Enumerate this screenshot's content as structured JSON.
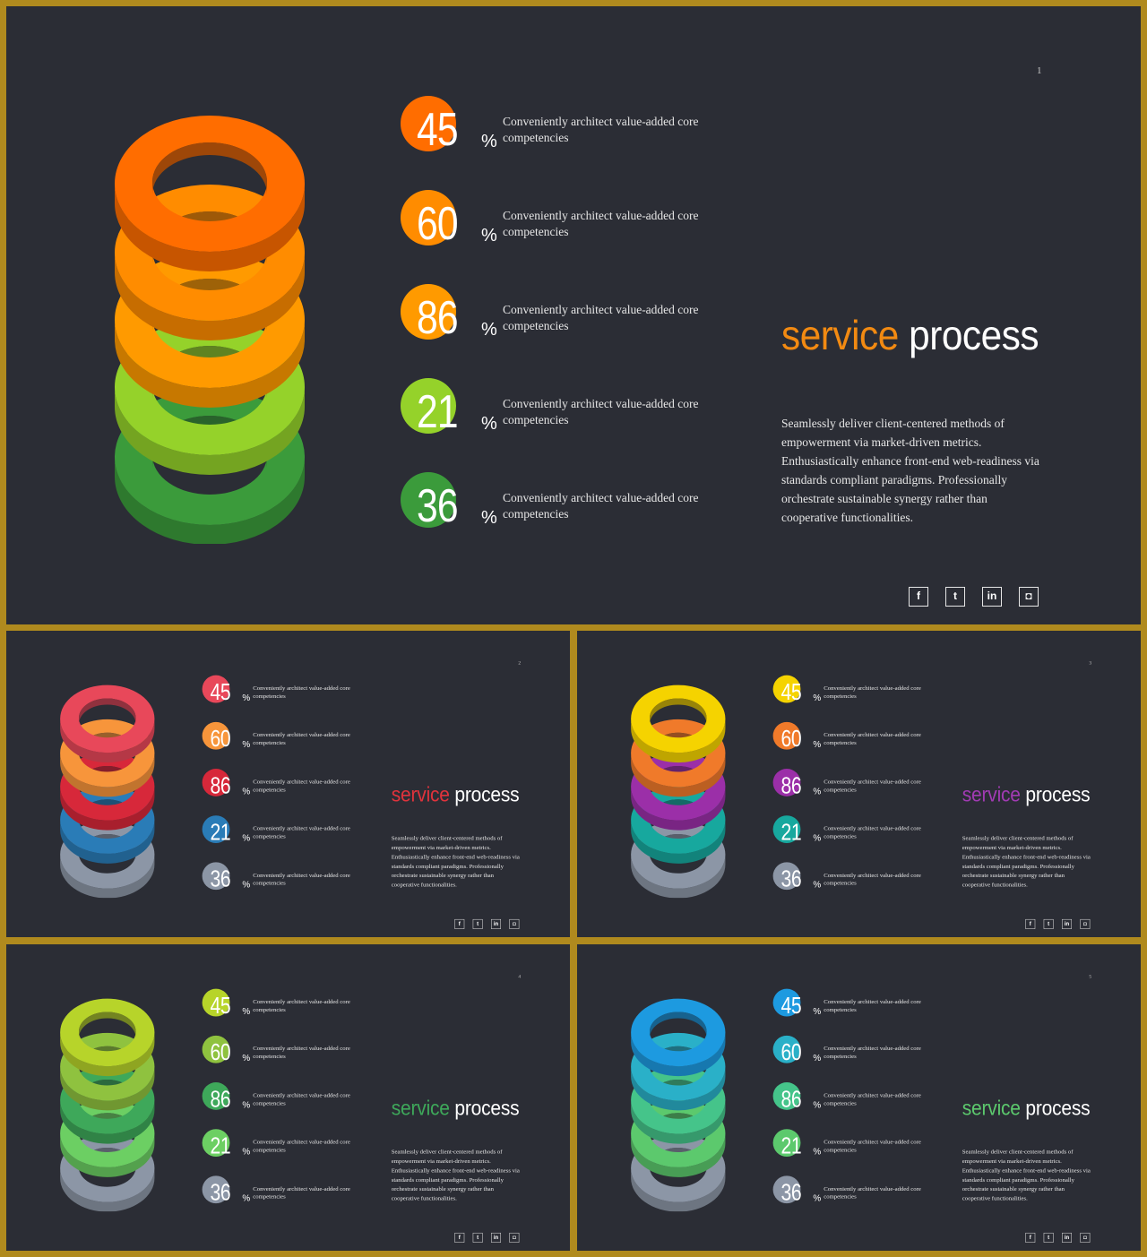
{
  "slides": [
    {
      "page": "1",
      "title_accent": "service",
      "title_rest": "process",
      "accent_color": "#f28a12",
      "ring_colors": [
        "#ff6d00",
        "#ff8c00",
        "#ff9a00",
        "#95d22a",
        "#3b9b3b"
      ],
      "stats": [
        {
          "value": "45",
          "unit": "%",
          "desc": "Conveniently architect value-added core competencies",
          "color": "#ff6d00"
        },
        {
          "value": "60",
          "unit": "%",
          "desc": "Conveniently architect value-added core competencies",
          "color": "#ff8c00"
        },
        {
          "value": "86",
          "unit": "%",
          "desc": "Conveniently architect value-added core competencies",
          "color": "#ff9a00"
        },
        {
          "value": "21",
          "unit": "%",
          "desc": "Conveniently architect value-added core competencies",
          "color": "#95d22a"
        },
        {
          "value": "36",
          "unit": "%",
          "desc": "Conveniently architect value-added core competencies",
          "color": "#3b9b3b"
        }
      ],
      "body": "Seamlessly deliver client-centered methods of empowerment via market-driven metrics. Enthusiastically enhance front-end web-readiness via standards compliant paradigms. Professionally orchestrate sustainable synergy rather than cooperative functionalities.",
      "social": [
        {
          "icon": "facebook-icon",
          "glyph": "f"
        },
        {
          "icon": "twitter-icon",
          "glyph": "t"
        },
        {
          "icon": "linkedin-icon",
          "glyph": "in"
        },
        {
          "icon": "instagram-icon",
          "glyph": "◘"
        }
      ]
    },
    {
      "page": "2",
      "title_accent": "service",
      "title_rest": "process",
      "accent_color": "#e0333c",
      "ring_colors": [
        "#e8485a",
        "#f7953b",
        "#d7283a",
        "#2a7cb7",
        "#8c96a6"
      ],
      "stats": [
        {
          "value": "45",
          "unit": "%",
          "desc": "Conveniently architect value-added core competencies",
          "color": "#e8485a"
        },
        {
          "value": "60",
          "unit": "%",
          "desc": "Conveniently architect value-added core competencies",
          "color": "#f7953b"
        },
        {
          "value": "86",
          "unit": "%",
          "desc": "Conveniently architect value-added core competencies",
          "color": "#d7283a"
        },
        {
          "value": "21",
          "unit": "%",
          "desc": "Conveniently architect value-added core competencies",
          "color": "#2a7cb7"
        },
        {
          "value": "36",
          "unit": "%",
          "desc": "Conveniently architect value-added core competencies",
          "color": "#8c96a6"
        }
      ],
      "body": "Seamlessly deliver client-centered methods of empowerment via market-driven metrics. Enthusiastically enhance front-end web-readiness via standards compliant paradigms. Professionally orchestrate sustainable synergy rather than cooperative functionalities.",
      "social": [
        {
          "icon": "facebook-icon",
          "glyph": "f"
        },
        {
          "icon": "twitter-icon",
          "glyph": "t"
        },
        {
          "icon": "linkedin-icon",
          "glyph": "in"
        },
        {
          "icon": "instagram-icon",
          "glyph": "◘"
        }
      ]
    },
    {
      "page": "3",
      "title_accent": "service",
      "title_rest": "process",
      "accent_color": "#a13bb3",
      "ring_colors": [
        "#f5d300",
        "#f07a2a",
        "#9b2fa8",
        "#17a89e",
        "#8c96a6"
      ],
      "stats": [
        {
          "value": "45",
          "unit": "%",
          "desc": "Conveniently architect value-added core competencies",
          "color": "#f5d300"
        },
        {
          "value": "60",
          "unit": "%",
          "desc": "Conveniently architect value-added core competencies",
          "color": "#f07a2a"
        },
        {
          "value": "86",
          "unit": "%",
          "desc": "Conveniently architect value-added core competencies",
          "color": "#9b2fa8"
        },
        {
          "value": "21",
          "unit": "%",
          "desc": "Conveniently architect value-added core competencies",
          "color": "#17a89e"
        },
        {
          "value": "36",
          "unit": "%",
          "desc": "Conveniently architect value-added core competencies",
          "color": "#8c96a6"
        }
      ],
      "body": "Seamlessly deliver client-centered methods of empowerment via market-driven metrics. Enthusiastically enhance front-end web-readiness via standards compliant paradigms. Professionally orchestrate sustainable synergy rather than cooperative functionalities.",
      "social": [
        {
          "icon": "facebook-icon",
          "glyph": "f"
        },
        {
          "icon": "twitter-icon",
          "glyph": "t"
        },
        {
          "icon": "linkedin-icon",
          "glyph": "in"
        },
        {
          "icon": "instagram-icon",
          "glyph": "◘"
        }
      ]
    },
    {
      "page": "4",
      "title_accent": "service",
      "title_rest": "process",
      "accent_color": "#3ea85a",
      "ring_colors": [
        "#b7d42a",
        "#8fc23f",
        "#3ea85a",
        "#6ccf63",
        "#8c96a6"
      ],
      "stats": [
        {
          "value": "45",
          "unit": "%",
          "desc": "Conveniently architect value-added core competencies",
          "color": "#b7d42a"
        },
        {
          "value": "60",
          "unit": "%",
          "desc": "Conveniently architect value-added core competencies",
          "color": "#8fc23f"
        },
        {
          "value": "86",
          "unit": "%",
          "desc": "Conveniently architect value-added core competencies",
          "color": "#3ea85a"
        },
        {
          "value": "21",
          "unit": "%",
          "desc": "Conveniently architect value-added core competencies",
          "color": "#6ccf63"
        },
        {
          "value": "36",
          "unit": "%",
          "desc": "Conveniently architect value-added core competencies",
          "color": "#8c96a6"
        }
      ],
      "body": "Seamlessly deliver client-centered methods of empowerment via market-driven metrics. Enthusiastically enhance front-end web-readiness via standards compliant paradigms. Professionally orchestrate sustainable synergy rather than cooperative functionalities.",
      "social": [
        {
          "icon": "facebook-icon",
          "glyph": "f"
        },
        {
          "icon": "twitter-icon",
          "glyph": "t"
        },
        {
          "icon": "linkedin-icon",
          "glyph": "in"
        },
        {
          "icon": "instagram-icon",
          "glyph": "◘"
        }
      ]
    },
    {
      "page": "5",
      "title_accent": "service",
      "title_rest": "process",
      "accent_color": "#5cc96d",
      "ring_colors": [
        "#1d9ae0",
        "#2ab0c8",
        "#45c48a",
        "#5cc96d",
        "#8c96a6"
      ],
      "stats": [
        {
          "value": "45",
          "unit": "%",
          "desc": "Conveniently architect value-added core competencies",
          "color": "#1d9ae0"
        },
        {
          "value": "60",
          "unit": "%",
          "desc": "Conveniently architect value-added core competencies",
          "color": "#2ab0c8"
        },
        {
          "value": "86",
          "unit": "%",
          "desc": "Conveniently architect value-added core competencies",
          "color": "#45c48a"
        },
        {
          "value": "21",
          "unit": "%",
          "desc": "Conveniently architect value-added core competencies",
          "color": "#5cc96d"
        },
        {
          "value": "36",
          "unit": "%",
          "desc": "Conveniently architect value-added core competencies",
          "color": "#8c96a6"
        }
      ],
      "body": "Seamlessly deliver client-centered methods of empowerment via market-driven metrics. Enthusiastically enhance front-end web-readiness via standards compliant paradigms. Professionally orchestrate sustainable synergy rather than cooperative functionalities.",
      "social": [
        {
          "icon": "facebook-icon",
          "glyph": "f"
        },
        {
          "icon": "twitter-icon",
          "glyph": "t"
        },
        {
          "icon": "linkedin-icon",
          "glyph": "in"
        },
        {
          "icon": "instagram-icon",
          "glyph": "◘"
        }
      ]
    }
  ]
}
